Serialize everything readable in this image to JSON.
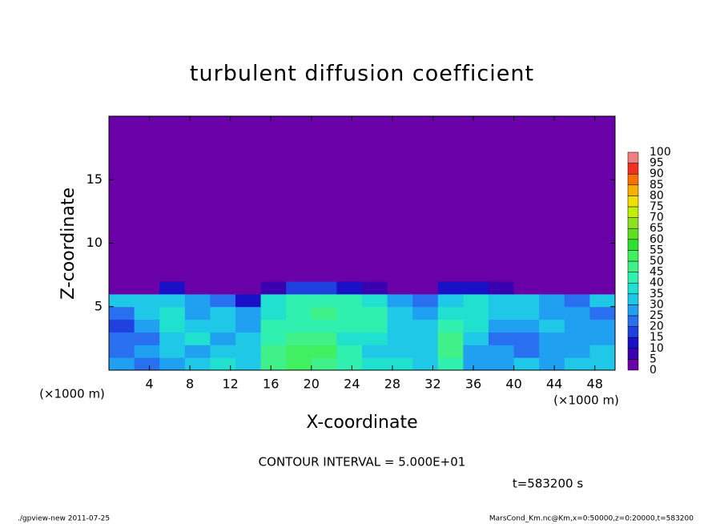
{
  "chart_data": {
    "type": "contour",
    "title": "turbulent diffusion coefficient",
    "xlabel": "X-coordinate",
    "ylabel": "Z-coordinate",
    "x_unit_label": "(×1000 m)",
    "y_unit_label": "(×1000 m)",
    "xlim": [
      0,
      50
    ],
    "ylim": [
      0,
      20
    ],
    "xticks": [
      4,
      8,
      12,
      16,
      20,
      24,
      28,
      32,
      36,
      40,
      44,
      48
    ],
    "yticks": [
      5,
      10,
      15
    ],
    "x_edges": [
      0,
      2.5,
      5,
      7.5,
      10,
      12.5,
      15,
      17.5,
      20,
      22.5,
      25,
      27.5,
      30,
      32.5,
      35,
      37.5,
      40,
      42.5,
      45,
      47.5,
      50
    ],
    "z_edges": [
      0,
      1,
      2,
      3,
      4,
      5,
      6,
      7,
      20
    ],
    "values": [
      [
        25,
        22,
        28,
        30,
        35,
        32,
        45,
        50,
        45,
        40,
        35,
        35,
        30,
        40,
        25,
        28,
        30,
        25,
        30,
        30
      ],
      [
        20,
        25,
        30,
        28,
        30,
        32,
        45,
        50,
        50,
        40,
        30,
        32,
        30,
        45,
        28,
        25,
        20,
        25,
        28,
        30
      ],
      [
        22,
        20,
        30,
        35,
        28,
        30,
        40,
        45,
        45,
        38,
        35,
        30,
        30,
        45,
        32,
        22,
        20,
        28,
        25,
        25
      ],
      [
        18,
        25,
        35,
        30,
        30,
        28,
        42,
        40,
        40,
        40,
        40,
        30,
        30,
        40,
        35,
        25,
        25,
        30,
        25,
        25
      ],
      [
        22,
        30,
        35,
        28,
        30,
        25,
        35,
        42,
        45,
        40,
        40,
        30,
        28,
        35,
        35,
        30,
        30,
        28,
        25,
        22
      ],
      [
        30,
        30,
        32,
        25,
        20,
        10,
        35,
        40,
        40,
        40,
        35,
        25,
        20,
        30,
        35,
        30,
        32,
        25,
        20,
        30
      ],
      [
        2,
        2,
        10,
        2,
        2,
        2,
        5,
        15,
        15,
        10,
        5,
        2,
        2,
        10,
        10,
        5,
        2,
        2,
        2,
        2
      ],
      [
        2,
        2,
        2,
        2,
        2,
        2,
        2,
        2,
        2,
        2,
        2,
        2,
        2,
        2,
        2,
        2,
        2,
        2,
        2,
        2
      ]
    ],
    "levels": [
      0,
      5,
      10,
      15,
      20,
      25,
      30,
      35,
      40,
      45,
      50,
      55,
      60,
      65,
      70,
      75,
      80,
      85,
      90,
      95,
      100
    ],
    "colors": [
      "#6a00a8",
      "#3a00b0",
      "#1a10c8",
      "#2040e0",
      "#2870f0",
      "#20a0f0",
      "#20c8e8",
      "#20e0d0",
      "#30f0b0",
      "#40f088",
      "#40f060",
      "#30e030",
      "#60e020",
      "#90e020",
      "#c0f000",
      "#f0e000",
      "#f8b000",
      "#f87000",
      "#f03020",
      "#f08080"
    ],
    "contour_interval": "CONTOUR INTERVAL = 5.000E+01",
    "time_label": "t=583200 s",
    "footer_left": "./gpview-new  2011-07-25",
    "footer_right": "MarsCond_Km.nc@Km,x=0:50000,z=0:20000,t=583200"
  }
}
